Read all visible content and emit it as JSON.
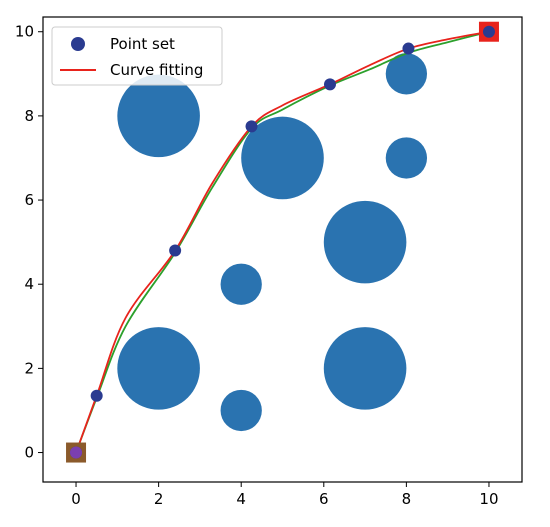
{
  "chart_data": {
    "type": "scatter",
    "xlim": [
      -0.8,
      10.8
    ],
    "ylim": [
      -0.7,
      10.35
    ],
    "x_ticks": [
      "0",
      "2",
      "4",
      "6",
      "8",
      "10"
    ],
    "y_ticks": [
      "0",
      "2",
      "4",
      "6",
      "8",
      "10"
    ],
    "grid": false,
    "legend_position": "top-left",
    "obstacles": [
      {
        "x": 2,
        "y": 8,
        "r": 1.0
      },
      {
        "x": 5,
        "y": 7,
        "r": 1.0
      },
      {
        "x": 7,
        "y": 5,
        "r": 1.0
      },
      {
        "x": 2,
        "y": 2,
        "r": 1.0
      },
      {
        "x": 7,
        "y": 2,
        "r": 1.0
      },
      {
        "x": 4,
        "y": 4,
        "r": 0.5
      },
      {
        "x": 4,
        "y": 1,
        "r": 0.5
      },
      {
        "x": 8,
        "y": 9,
        "r": 0.5
      },
      {
        "x": 8,
        "y": 7,
        "r": 0.5
      }
    ],
    "series": [
      {
        "name": "Point set",
        "mode": "markers",
        "color": "#2a3b90",
        "x": [
          0,
          0.5,
          2.4,
          4.25,
          6.15,
          8.05,
          10
        ],
        "y": [
          0,
          1.35,
          4.8,
          7.75,
          8.75,
          9.6,
          10
        ]
      },
      {
        "name": "Curve fitting",
        "mode": "line",
        "color": "#e8231c",
        "x": [
          0,
          0.5,
          1.2,
          2.4,
          3.3,
          4.25,
          5.0,
          6.15,
          7.1,
          8.05,
          9.0,
          10
        ],
        "y": [
          0,
          1.35,
          3.2,
          4.8,
          6.4,
          7.75,
          8.25,
          8.75,
          9.2,
          9.6,
          9.82,
          10
        ]
      },
      {
        "mode": "line",
        "color": "#2ca02c",
        "x": [
          0,
          0.5,
          1.2,
          2.4,
          3.3,
          4.25,
          5.0,
          6.15,
          7.1,
          8.05,
          9.0,
          10
        ],
        "y": [
          0,
          1.3,
          3.0,
          4.75,
          6.3,
          7.7,
          8.15,
          8.72,
          9.1,
          9.5,
          9.75,
          10
        ]
      }
    ],
    "start_point": {
      "x": 0,
      "y": 0,
      "color": "#8b5a2b"
    },
    "goal_point": {
      "x": 10,
      "y": 10,
      "color": "#e8231c"
    },
    "obstacle_color": "#2a73b0"
  },
  "legend": {
    "point_set_label": "Point set",
    "curve_label": "Curve fitting"
  }
}
